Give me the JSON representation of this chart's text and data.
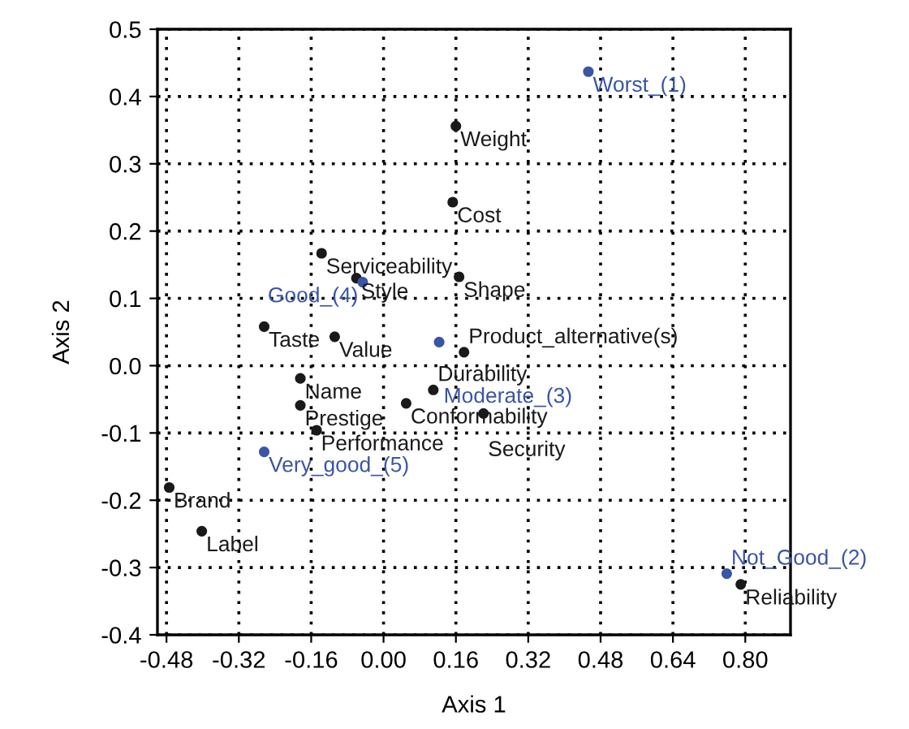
{
  "chart_data": {
    "type": "scatter",
    "xlabel": "Axis 1",
    "ylabel": "Axis 2",
    "xlim": [
      -0.5,
      0.9
    ],
    "ylim": [
      -0.4,
      0.5
    ],
    "xticks": [
      -0.48,
      -0.32,
      -0.16,
      {
        "value": 0,
        "label": "0.00"
      },
      0.16,
      0.32,
      0.48,
      0.64,
      {
        "value": 0.8,
        "label": "0.80"
      }
    ],
    "yticks": [
      -0.4,
      -0.3,
      -0.2,
      -0.1,
      {
        "value": 0,
        "label": "0.0"
      },
      0.1,
      0.2,
      0.3,
      0.4,
      0.5
    ],
    "grid": true,
    "marker": "circle",
    "series": [
      {
        "color": "#1a1a1a",
        "x": [
          0.16,
          0.153,
          -0.137,
          -0.06,
          0.167,
          -0.264,
          -0.108,
          -0.184,
          -0.184,
          -0.148,
          0.05,
          0.11,
          0.221,
          0.178,
          -0.474,
          -0.402,
          0.79
        ],
        "values": [
          0.356,
          0.243,
          0.167,
          0.13,
          0.132,
          0.058,
          0.043,
          -0.019,
          -0.059,
          -0.096,
          -0.056,
          -0.036,
          -0.071,
          0.02,
          -0.181,
          -0.246,
          -0.325
        ]
      },
      {
        "color": "#3a55a4",
        "x": [
          0.453,
          0.759,
          0.123,
          -0.046,
          -0.264
        ],
        "values": [
          0.437,
          -0.309,
          0.035,
          0.124,
          -0.128
        ]
      }
    ],
    "annotations": [
      {
        "text": "Weight",
        "x": 0.16,
        "y": 0.356
      },
      {
        "text": "Cost",
        "x": 0.153,
        "y": 0.243
      },
      {
        "text": "Serviceability",
        "x": -0.137,
        "y": 0.167
      },
      {
        "text": "Style",
        "x": -0.06,
        "y": 0.13
      },
      {
        "text": "Shape",
        "x": 0.167,
        "y": 0.132
      },
      {
        "text": "Taste",
        "x": -0.264,
        "y": 0.058
      },
      {
        "text": "Value",
        "x": -0.108,
        "y": 0.043
      },
      {
        "text": "Name",
        "x": -0.184,
        "y": -0.019
      },
      {
        "text": "Prestige",
        "x": -0.184,
        "y": -0.059
      },
      {
        "text": "Performance",
        "x": -0.148,
        "y": -0.096
      },
      {
        "text": "Conformability",
        "x": 0.05,
        "y": -0.056
      },
      {
        "text": "Durability",
        "x": 0.11,
        "y": -0.036
      },
      {
        "text": "Security",
        "x": 0.221,
        "y": -0.071
      },
      {
        "text": "Product_alternative(s)",
        "x": 0.178,
        "y": 0.02
      },
      {
        "text": "Brand",
        "x": -0.474,
        "y": -0.181
      },
      {
        "text": "Label",
        "x": -0.402,
        "y": -0.246
      },
      {
        "text": "Reliability",
        "x": 0.79,
        "y": -0.325
      },
      {
        "text": "Worst_(1)",
        "x": 0.453,
        "y": 0.437
      },
      {
        "text": "Not_Good_(2)",
        "x": 0.759,
        "y": -0.309
      },
      {
        "text": "Moderate_(3)",
        "x": 0.123,
        "y": 0.035
      },
      {
        "text": "Good_(4)",
        "x": -0.046,
        "y": 0.124
      },
      {
        "text": "Very_good_(5)",
        "x": -0.264,
        "y": -0.128
      }
    ]
  }
}
